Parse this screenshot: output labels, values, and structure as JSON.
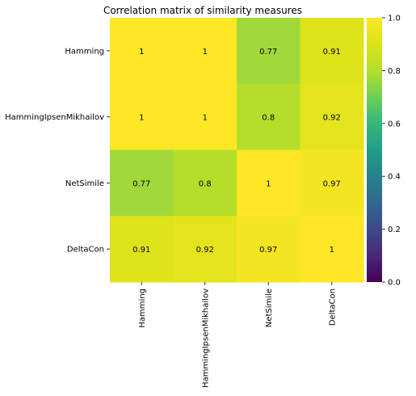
{
  "chart_data": {
    "type": "heatmap",
    "title": "Correlation matrix of similarity measures",
    "row_labels": [
      "Hamming",
      "HammingIpsenMikhailov",
      "NetSimile",
      "DeltaCon"
    ],
    "col_labels": [
      "Hamming",
      "HammingIpsenMikhailov",
      "NetSimile",
      "DeltaCon"
    ],
    "values": [
      [
        1,
        1,
        0.77,
        0.91
      ],
      [
        1,
        1,
        0.8,
        0.92
      ],
      [
        0.77,
        0.8,
        1,
        0.97
      ],
      [
        0.91,
        0.92,
        0.97,
        1
      ]
    ],
    "cell_labels": [
      [
        "1",
        "1",
        "0.77",
        "0.91"
      ],
      [
        "1",
        "1",
        "0.8",
        "0.92"
      ],
      [
        "0.77",
        "0.8",
        "1",
        "0.97"
      ],
      [
        "0.91",
        "0.92",
        "0.97",
        "1"
      ]
    ],
    "colormap": "viridis",
    "vmin": 0,
    "vmax": 1,
    "colorbar_ticks": [
      0,
      0.2,
      0.4,
      0.6,
      0.8,
      1
    ],
    "colorbar_tick_labels": [
      "0.0",
      "0.2",
      "0.4",
      "0.6",
      "0.8",
      "1.0"
    ],
    "colorbar_position": "right",
    "xlabel": "",
    "ylabel": ""
  }
}
